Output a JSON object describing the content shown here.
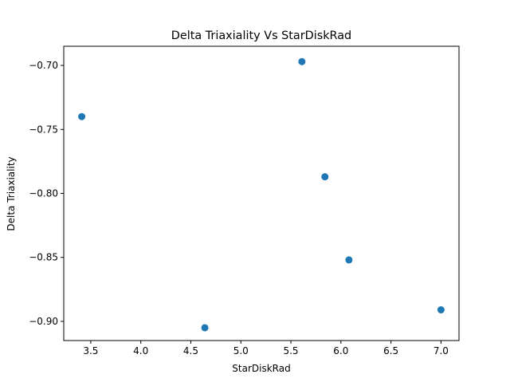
{
  "chart_data": {
    "type": "scatter",
    "title": "Delta Triaxiality Vs StarDiskRad",
    "xlabel": "StarDiskRad",
    "ylabel": "Delta Triaxiality",
    "x": [
      3.41,
      4.64,
      5.61,
      5.84,
      6.08,
      7.0
    ],
    "y": [
      -0.74,
      -0.905,
      -0.697,
      -0.787,
      -0.852,
      -0.891
    ],
    "xlim": [
      3.23,
      7.18
    ],
    "ylim": [
      -0.915,
      -0.685
    ],
    "xticks": [
      3.5,
      4.0,
      4.5,
      5.0,
      5.5,
      6.0,
      6.5,
      7.0
    ],
    "xtick_labels": [
      "3.5",
      "4.0",
      "4.5",
      "5.0",
      "5.5",
      "6.0",
      "6.5",
      "7.0"
    ],
    "yticks": [
      -0.7,
      -0.75,
      -0.8,
      -0.85,
      -0.9
    ],
    "ytick_labels": [
      "−0.70",
      "−0.75",
      "−0.80",
      "−0.85",
      "−0.90"
    ],
    "grid": false,
    "marker_color": "#1f77b4"
  }
}
